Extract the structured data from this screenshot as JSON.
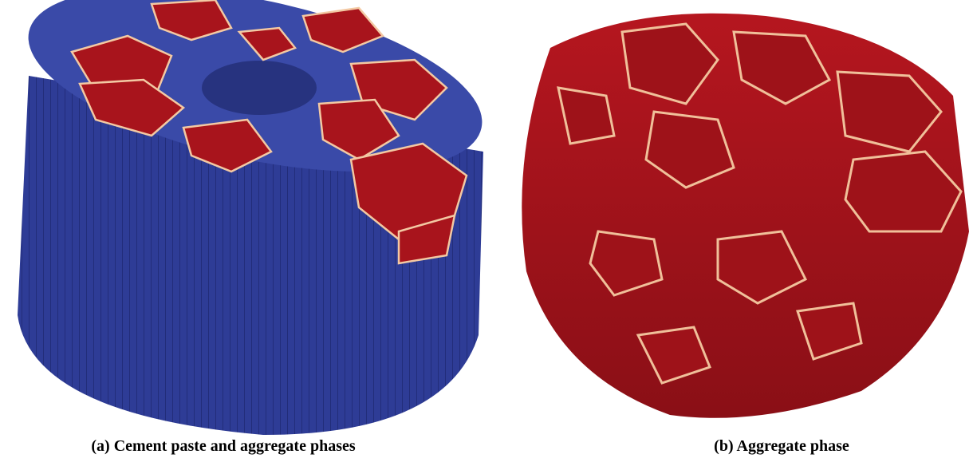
{
  "figure": {
    "panels": [
      {
        "label": "(a)",
        "caption": "Cement paste and aggregate phases"
      },
      {
        "label": "(b)",
        "caption": "Aggregate phase"
      }
    ]
  }
}
